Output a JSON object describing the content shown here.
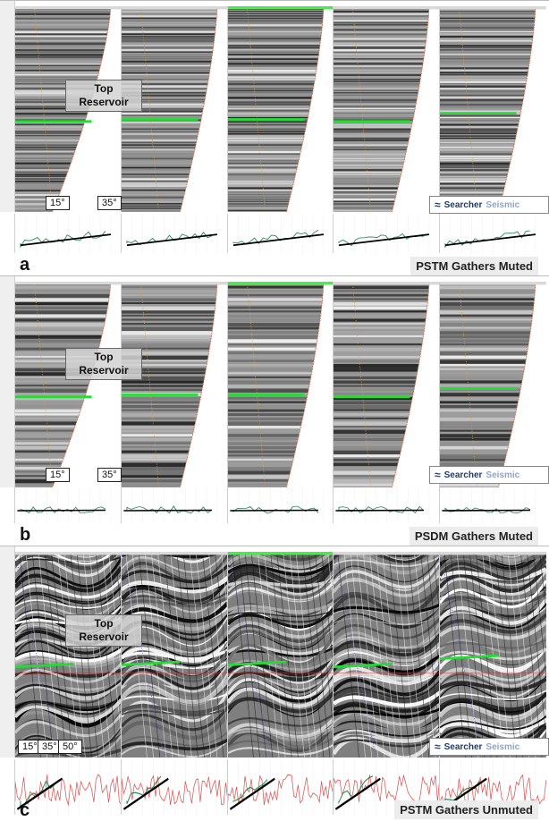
{
  "panels": [
    {
      "id": "a",
      "letter": "a",
      "caption": "PSTM Gathers Muted",
      "horizon_label": "Top\nReservoir",
      "angle_labels": [
        "15°",
        "35°"
      ],
      "logo": {
        "word1": "Searcher",
        "word2": "Seismic"
      },
      "style": "stripes",
      "trend": "rising"
    },
    {
      "id": "b",
      "letter": "b",
      "caption": "PSDM Gathers Muted",
      "horizon_label": "Top\nReservoir",
      "angle_labels": [
        "15°",
        "35°"
      ],
      "logo": {
        "word1": "Searcher",
        "word2": "Seismic"
      },
      "style": "stripes-bold",
      "trend": "flat"
    },
    {
      "id": "c",
      "letter": "c",
      "caption": "PSTM Gathers Unmuted",
      "horizon_label": "Top\nReservoir",
      "angle_labels": [
        "15°",
        "35°",
        "50°"
      ],
      "logo": {
        "word1": "Searcher",
        "word2": "Seismic"
      },
      "style": "chaotic",
      "trend": "steep"
    }
  ],
  "colors": {
    "horizon": "#22dd33",
    "highlight_header": "#4cea4c",
    "mute_line": "#d06a3e",
    "attribute_curve": "#2e8b57",
    "fit_line": "#000000",
    "noise_curve": "#e05050"
  }
}
